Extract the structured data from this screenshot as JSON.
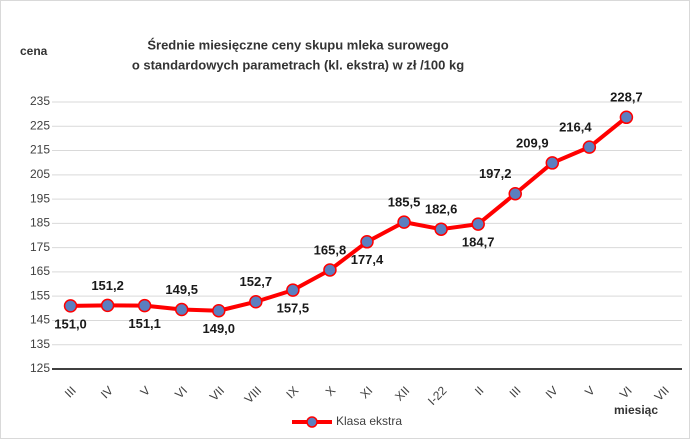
{
  "chart_data": {
    "type": "line",
    "title": [
      "Średnie miesięczne ceny skupu mleka surowego",
      "o standardowych parametrach (kl. ekstra) w zł /100 kg"
    ],
    "y_label": "cena",
    "x_label": "miesiąc",
    "categories": [
      "III",
      "IV",
      "V",
      "VI",
      "VII",
      "VIII",
      "IX",
      "X",
      "XI",
      "XII",
      "I-22",
      "II",
      "III",
      "IV",
      "V",
      "VI",
      "VII"
    ],
    "series": [
      {
        "name": "Klasa ekstra",
        "color": "#ff0000",
        "marker_color": "#5b7fc0",
        "values": [
          151.0,
          151.2,
          151.1,
          149.5,
          149.0,
          152.7,
          157.5,
          165.8,
          177.4,
          185.5,
          182.6,
          184.7,
          197.2,
          209.9,
          216.4,
          228.7,
          null
        ],
        "value_labels": [
          "151,0",
          "151,2",
          "151,1",
          "149,5",
          "149,0",
          "152,7",
          "157,5",
          "165,8",
          "177,4",
          "185,5",
          "182,6",
          "184,7",
          "197,2",
          "209,9",
          "216,4",
          "228,7",
          null
        ]
      }
    ],
    "ylim": [
      125,
      235
    ],
    "yticks": [
      125,
      135,
      145,
      155,
      165,
      175,
      185,
      195,
      205,
      215,
      225,
      235
    ],
    "grid": true,
    "legend": "bottom"
  }
}
